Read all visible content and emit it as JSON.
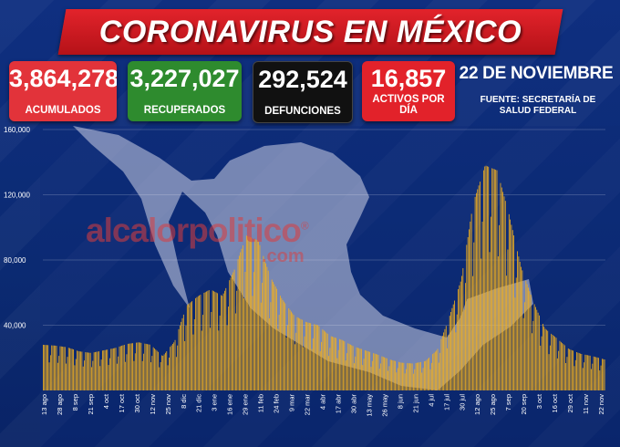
{
  "header": {
    "title": "CORONAVIRUS EN MÉXICO"
  },
  "stats": [
    {
      "value": "3,864,278",
      "label": "ACUMULADOS",
      "color": "#e2333a"
    },
    {
      "value": "3,227,027",
      "label": "RECUPERADOS",
      "color": "#2e8b2e"
    },
    {
      "value": "292,524",
      "label": "DEFUNCIONES",
      "color": "#111111"
    },
    {
      "value": "16,857",
      "label": "ACTIVOS POR DÍA",
      "color": "#e2222a"
    }
  ],
  "date": "22 DE NOVIEMBRE",
  "source_line1": "FUENTE: SECRETARÍA DE",
  "source_line2": "SALUD FEDERAL",
  "watermark": {
    "name": "alcalorpolitico",
    "mark": "®",
    "com": ".com"
  },
  "chart_data": {
    "type": "bar",
    "ylim": [
      0,
      160000
    ],
    "yticks": [
      40000,
      80000,
      120000,
      160000
    ],
    "ytick_labels": [
      "40,000",
      "80,000",
      "120,000",
      "160,000"
    ],
    "xtick_labels": [
      "13 ago",
      "28 ago",
      "8 sep",
      "21 sep",
      "4 oct",
      "17 oct",
      "30 oct",
      "12 nov",
      "25 nov",
      "8 dic",
      "21 dic",
      "3 ene",
      "16 ene",
      "29 ene",
      "11 feb",
      "24 feb",
      "9 mar",
      "22 mar",
      "4 abr",
      "17 abr",
      "30 abr",
      "13 may",
      "26 may",
      "8 jun",
      "21 jun",
      "4 jul",
      "17 jul",
      "30 jul",
      "12 ago",
      "25 ago",
      "7 sep",
      "20 sep",
      "3 oct",
      "16 oct",
      "29 oct",
      "11 nov",
      "22 nov"
    ],
    "series_color": "#f2b01e",
    "control_values": [
      28000,
      27500,
      26500,
      24000,
      23000,
      24500,
      26000,
      28500,
      29500,
      28000,
      21000,
      30000,
      52000,
      58000,
      62000,
      58000,
      74000,
      95000,
      92000,
      70000,
      56000,
      46000,
      42000,
      40000,
      33500,
      31000,
      27000,
      24500,
      22000,
      19000,
      17000,
      16500,
      18000,
      25000,
      45000,
      68000,
      115000,
      138000,
      135000,
      108000,
      76000,
      55000,
      38000,
      32000,
      25500,
      22500,
      21000,
      19000
    ]
  }
}
